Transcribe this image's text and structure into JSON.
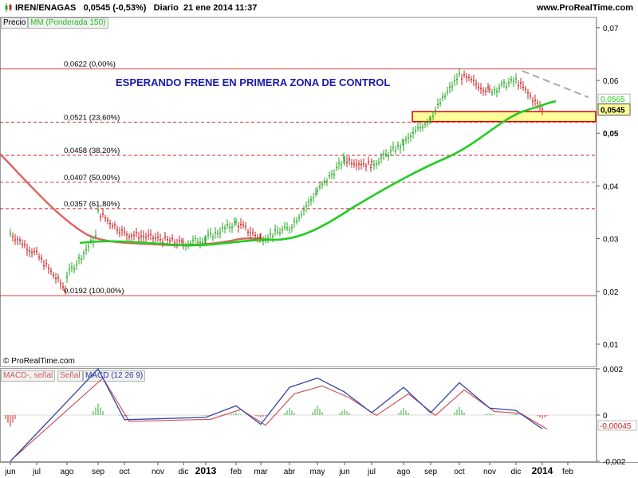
{
  "header": {
    "symbol": "IREN/ENAGAS",
    "quote": "0,0545 (-0,53%)",
    "timeframe": "Diario",
    "datetime": "21 ene 2014 11:37",
    "site": "www.ProRealTime.com",
    "candle_icon": "candlestick-icon"
  },
  "tags": {
    "price": "Precio",
    "mm": "MM (Ponderada 150)",
    "macd_hist": "MACD-, señal",
    "macd_signal": "Señal",
    "macd": "MACD (12 26 9)"
  },
  "copyright": "© ProRealTime.com",
  "colors": {
    "candle_up": "#22aa22",
    "candle_down": "#cc2222",
    "mm150": "#22cc22",
    "early_ma": "#e06060",
    "fibo": "#cc2222",
    "zone_fill": "#ffff99",
    "zone_border": "#dd0000",
    "annotation": "#1a1aaa",
    "trend": "#aaaaaa",
    "macd": "#3344aa",
    "signal": "#cc5555",
    "hist_fill": "#e07888",
    "hist_up": "#33aa33"
  },
  "chart_data": [
    {
      "type": "candlestick",
      "title": "",
      "annotation": "ESPERANDO FRENE EN PRIMERA ZONA DE CONTROL",
      "y_axis_ticks": [
        "0,07",
        "0,06",
        "0,05",
        "0,04",
        "0,03",
        "0,02",
        "0,01"
      ],
      "y_tick_values": [
        0.07,
        0.06,
        0.05,
        0.04,
        0.03,
        0.02,
        0.01
      ],
      "ylim": [
        0.0,
        0.0745
      ],
      "x_axis_months": [
        "jun",
        "jul",
        "ago",
        "sep",
        "oct",
        "nov",
        "dic",
        "2013",
        "feb",
        "mar",
        "abr",
        "may",
        "jun",
        "jul",
        "ago",
        "sep",
        "oct",
        "nov",
        "dic",
        "2014",
        "feb"
      ],
      "x_bold_labels": [
        "2013",
        "2014"
      ],
      "current_price_label": "0,0545",
      "mm_price_label": "0,0565",
      "mm_value": 0.0565,
      "fibonacci_levels": [
        {
          "label": "0,0622 (0,00%)",
          "value": 0.0622
        },
        {
          "label": "0,0521 (23,60%)",
          "value": 0.0521
        },
        {
          "label": "0,0458 (38,20%)",
          "value": 0.0458
        },
        {
          "label": "0,0407 (50,00%)",
          "value": 0.0407
        },
        {
          "label": "0,0357 (61,80%)",
          "value": 0.0357
        },
        {
          "label": "0,0192 (100,00%)",
          "value": 0.0192
        }
      ],
      "control_zone": {
        "low": 0.0522,
        "high": 0.0541,
        "start_month": "ago"
      },
      "trendline": {
        "from": [
          "dic",
          0.0618
        ],
        "to": [
          "ene",
          0.0568
        ]
      },
      "price_path": [
        [
          "jun",
          0.031
        ],
        [
          "jul",
          0.027
        ],
        [
          "ago",
          0.02
        ],
        [
          "ago",
          0.023
        ],
        [
          "sep",
          0.031
        ],
        [
          "sep",
          0.035
        ],
        [
          "oct",
          0.031
        ],
        [
          "nov",
          0.03
        ],
        [
          "dic",
          0.029
        ],
        [
          "2013",
          0.03
        ],
        [
          "feb",
          0.033
        ],
        [
          "mar",
          0.03
        ],
        [
          "abr",
          0.032
        ],
        [
          "may",
          0.039
        ],
        [
          "jun",
          0.045
        ],
        [
          "jul",
          0.044
        ],
        [
          "ago",
          0.048
        ],
        [
          "sep",
          0.053
        ],
        [
          "oct",
          0.061
        ],
        [
          "nov",
          0.058
        ],
        [
          "dic",
          0.06
        ],
        [
          "2014",
          0.0545
        ]
      ],
      "series": [
        {
          "name": "MM (Ponderada 150)",
          "values": [
            [
              0.0298,
              0.0306
            ],
            [
              0.031,
              0.029
            ],
            [
              0.0345,
              0.039
            ],
            [
              0.043,
              0.0495
            ],
            [
              0.054,
              0.0565
            ]
          ]
        }
      ]
    },
    {
      "type": "line",
      "title": "MACD (12 26 9)",
      "y_axis_ticks": [
        "0,002",
        "0",
        "-0,002"
      ],
      "y_tick_values": [
        0.002,
        0.0,
        -0.002
      ],
      "ylim": [
        -0.0027,
        0.0029
      ],
      "value_labels": [
        "-0,00045"
      ],
      "macd_peaks": [
        [
          "jun",
          -0.002
        ],
        [
          "sep",
          0.002
        ],
        [
          "oct",
          -0.0002
        ],
        [
          "2013",
          -0.0001
        ],
        [
          "feb",
          0.0004
        ],
        [
          "mar",
          -0.0004
        ],
        [
          "abr",
          0.0012
        ],
        [
          "may",
          0.0016
        ],
        [
          "jun",
          0.001
        ],
        [
          "jul",
          0.0001
        ],
        [
          "ago",
          0.0012
        ],
        [
          "sep",
          0.0001
        ],
        [
          "oct",
          0.0014
        ],
        [
          "nov",
          0.0003
        ],
        [
          "dic",
          0.0002
        ],
        [
          "2014",
          -0.0006
        ]
      ]
    }
  ]
}
